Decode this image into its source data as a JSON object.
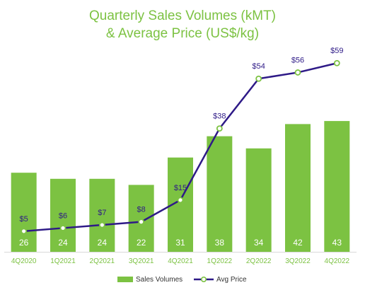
{
  "chart_data": {
    "type": "bar+line",
    "title_line1": "Quarterly Sales Volumes (kMT)",
    "title_line2": "& Average Price (US$/kg)",
    "categories": [
      "4Q2020",
      "1Q2021",
      "2Q2021",
      "3Q2021",
      "4Q2021",
      "1Q2022",
      "2Q2022",
      "3Q2022",
      "4Q2022"
    ],
    "bar_series": {
      "name": "Sales Volumes",
      "values": [
        26,
        24,
        24,
        22,
        31,
        38,
        34,
        42,
        43
      ],
      "color": "#7cc242"
    },
    "line_series": {
      "name": "Avg Price",
      "values": [
        5,
        6,
        7,
        8,
        15,
        38,
        54,
        56,
        59
      ],
      "labels": [
        "$5",
        "$6",
        "$7",
        "$8",
        "$15",
        "$38",
        "$54",
        "$56",
        "$59"
      ],
      "color": "#2e1a87",
      "marker_color": "#7cc242"
    },
    "bar_ylim": [
      0,
      60
    ],
    "line_ylim": [
      0,
      70
    ],
    "legend_position": "bottom",
    "grid": false,
    "title_color": "#7cc242",
    "axis_label_color": "#7cc242"
  }
}
